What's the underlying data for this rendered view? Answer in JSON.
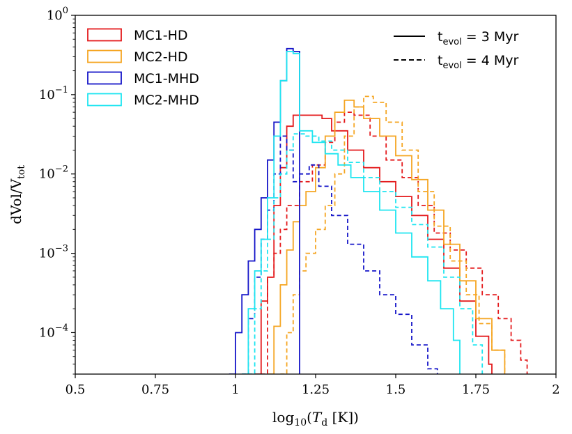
{
  "chart_data": {
    "type": "line",
    "drawstyle": "steps",
    "xlabel": {
      "prefix": "log",
      "sub": "10",
      "open": "(",
      "var": "T",
      "var_sub": "d",
      "close": " [K])"
    },
    "ylabel": {
      "main": "dVol/V",
      "sub": "tot"
    },
    "xlim": [
      0.5,
      2.0
    ],
    "ylim": [
      3e-05,
      1.0
    ],
    "yscale": "log",
    "grid": false,
    "x_ticks": [
      {
        "value": 0.5,
        "label": "0.5"
      },
      {
        "value": 0.75,
        "label": "0.75"
      },
      {
        "value": 1.0,
        "label": "1"
      },
      {
        "value": 1.25,
        "label": "1.25"
      },
      {
        "value": 1.5,
        "label": "1.5"
      },
      {
        "value": 1.75,
        "label": "1.75"
      },
      {
        "value": 2.0,
        "label": "2"
      }
    ],
    "y_ticks": [
      {
        "value": 0.0001,
        "base": "10",
        "exp": "−4"
      },
      {
        "value": 0.001,
        "base": "10",
        "exp": "−3"
      },
      {
        "value": 0.01,
        "base": "10",
        "exp": "−2"
      },
      {
        "value": 0.1,
        "base": "10",
        "exp": "−1"
      },
      {
        "value": 1.0,
        "base": "10",
        "exp": "0"
      }
    ],
    "legend_series": {
      "placement": "upper-left",
      "entries": [
        {
          "label": "MC1-HD",
          "color": "#e41a1c"
        },
        {
          "label": "MC2-HD",
          "color": "#f5a623"
        },
        {
          "label": "MC1-MHD",
          "color": "#1414c8"
        },
        {
          "label": "MC2-MHD",
          "color": "#1ee5f0"
        }
      ]
    },
    "legend_time": {
      "placement": "upper-right",
      "entries": [
        {
          "label_main": "t",
          "label_sub": "evol",
          "label_rest": " = 3 Myr",
          "linestyle": "solid"
        },
        {
          "label_main": "t",
          "label_sub": "evol",
          "label_rest": " = 4 Myr",
          "linestyle": "dashed"
        }
      ]
    },
    "series": [
      {
        "name": "MC1-HD",
        "t": "3 Myr",
        "color": "#e41a1c",
        "dash": false,
        "points": [
          [
            1.06,
            3e-05
          ],
          [
            1.08,
            0.00025
          ],
          [
            1.1,
            0.0005
          ],
          [
            1.12,
            0.004
          ],
          [
            1.14,
            0.012
          ],
          [
            1.16,
            0.04
          ],
          [
            1.18,
            0.055
          ],
          [
            1.2,
            0.055
          ],
          [
            1.24,
            0.055
          ],
          [
            1.27,
            0.05
          ],
          [
            1.3,
            0.035
          ],
          [
            1.35,
            0.02
          ],
          [
            1.4,
            0.012
          ],
          [
            1.45,
            0.008
          ],
          [
            1.5,
            0.0052
          ],
          [
            1.55,
            0.003
          ],
          [
            1.6,
            0.0015
          ],
          [
            1.65,
            0.00065
          ],
          [
            1.7,
            0.00025
          ],
          [
            1.75,
            9e-05
          ],
          [
            1.79,
            4e-05
          ],
          [
            1.8,
            3e-05
          ]
        ]
      },
      {
        "name": "MC1-HD",
        "t": "4 Myr",
        "color": "#e41a1c",
        "dash": true,
        "points": [
          [
            1.08,
            3e-05
          ],
          [
            1.1,
            0.0005
          ],
          [
            1.12,
            0.001
          ],
          [
            1.14,
            0.002
          ],
          [
            1.16,
            0.004
          ],
          [
            1.2,
            0.008
          ],
          [
            1.24,
            0.013
          ],
          [
            1.28,
            0.025
          ],
          [
            1.31,
            0.045
          ],
          [
            1.34,
            0.06
          ],
          [
            1.37,
            0.055
          ],
          [
            1.42,
            0.03
          ],
          [
            1.47,
            0.015
          ],
          [
            1.52,
            0.009
          ],
          [
            1.57,
            0.004
          ],
          [
            1.62,
            0.0018
          ],
          [
            1.67,
            0.0011
          ],
          [
            1.72,
            0.00065
          ],
          [
            1.77,
            0.0003
          ],
          [
            1.82,
            0.00015
          ],
          [
            1.86,
            8e-05
          ],
          [
            1.89,
            4.5e-05
          ],
          [
            1.91,
            3e-05
          ]
        ]
      },
      {
        "name": "MC2-HD",
        "t": "3 Myr",
        "color": "#f5a623",
        "dash": false,
        "points": [
          [
            1.1,
            3e-05
          ],
          [
            1.12,
            0.00012
          ],
          [
            1.14,
            0.0004
          ],
          [
            1.16,
            0.0011
          ],
          [
            1.18,
            0.0025
          ],
          [
            1.2,
            0.004
          ],
          [
            1.22,
            0.006
          ],
          [
            1.25,
            0.012
          ],
          [
            1.28,
            0.03
          ],
          [
            1.31,
            0.06
          ],
          [
            1.34,
            0.085
          ],
          [
            1.37,
            0.07
          ],
          [
            1.4,
            0.05
          ],
          [
            1.45,
            0.03
          ],
          [
            1.5,
            0.017
          ],
          [
            1.55,
            0.0085
          ],
          [
            1.6,
            0.0035
          ],
          [
            1.65,
            0.0013
          ],
          [
            1.7,
            0.00045
          ],
          [
            1.75,
            0.00015
          ],
          [
            1.8,
            6e-05
          ],
          [
            1.84,
            3e-05
          ]
        ]
      },
      {
        "name": "MC2-HD",
        "t": "4 Myr",
        "color": "#f5a623",
        "dash": true,
        "points": [
          [
            1.14,
            3e-05
          ],
          [
            1.16,
            0.0001
          ],
          [
            1.18,
            0.0003
          ],
          [
            1.2,
            0.0006
          ],
          [
            1.22,
            0.001
          ],
          [
            1.25,
            0.002
          ],
          [
            1.28,
            0.004
          ],
          [
            1.31,
            0.01
          ],
          [
            1.34,
            0.03
          ],
          [
            1.37,
            0.07
          ],
          [
            1.4,
            0.095
          ],
          [
            1.43,
            0.08
          ],
          [
            1.47,
            0.045
          ],
          [
            1.52,
            0.02
          ],
          [
            1.57,
            0.006
          ],
          [
            1.62,
            0.0022
          ],
          [
            1.67,
            0.0008
          ],
          [
            1.72,
            0.0003
          ],
          [
            1.76,
            0.00013
          ],
          [
            1.8,
            6e-05
          ],
          [
            1.84,
            3e-05
          ]
        ]
      },
      {
        "name": "MC1-MHD",
        "t": "3 Myr",
        "color": "#1414c8",
        "dash": false,
        "points": [
          [
            0.98,
            3e-05
          ],
          [
            1.0,
            0.0001
          ],
          [
            1.02,
            0.0003
          ],
          [
            1.04,
            0.0008
          ],
          [
            1.06,
            0.002
          ],
          [
            1.08,
            0.005
          ],
          [
            1.1,
            0.015
          ],
          [
            1.12,
            0.045
          ],
          [
            1.14,
            0.15
          ],
          [
            1.16,
            0.38
          ],
          [
            1.18,
            0.35
          ],
          [
            1.2,
            3e-05
          ]
        ]
      },
      {
        "name": "MC1-MHD",
        "t": "4 Myr",
        "color": "#1414c8",
        "dash": true,
        "points": [
          [
            1.02,
            3e-05
          ],
          [
            1.04,
            0.00015
          ],
          [
            1.06,
            0.0005
          ],
          [
            1.08,
            0.0015
          ],
          [
            1.1,
            0.0035
          ],
          [
            1.12,
            0.01
          ],
          [
            1.14,
            0.03
          ],
          [
            1.16,
            0.02
          ],
          [
            1.18,
            0.008
          ],
          [
            1.2,
            0.01
          ],
          [
            1.23,
            0.013
          ],
          [
            1.26,
            0.007
          ],
          [
            1.3,
            0.003
          ],
          [
            1.35,
            0.0013
          ],
          [
            1.4,
            0.0006
          ],
          [
            1.45,
            0.0003
          ],
          [
            1.5,
            0.00017
          ],
          [
            1.55,
            7e-05
          ],
          [
            1.6,
            3.5e-05
          ],
          [
            1.63,
            3e-05
          ]
        ]
      },
      {
        "name": "MC2-MHD",
        "t": "3 Myr",
        "color": "#1ee5f0",
        "dash": false,
        "points": [
          [
            1.02,
            3e-05
          ],
          [
            1.04,
            0.0002
          ],
          [
            1.06,
            0.0006
          ],
          [
            1.08,
            0.0015
          ],
          [
            1.1,
            0.005
          ],
          [
            1.12,
            0.03
          ],
          [
            1.14,
            0.15
          ],
          [
            1.16,
            0.35
          ],
          [
            1.18,
            0.33
          ],
          [
            1.2,
            0.035
          ],
          [
            1.24,
            0.025
          ],
          [
            1.28,
            0.018
          ],
          [
            1.32,
            0.013
          ],
          [
            1.36,
            0.009
          ],
          [
            1.4,
            0.006
          ],
          [
            1.45,
            0.0035
          ],
          [
            1.5,
            0.0018
          ],
          [
            1.55,
            0.0009
          ],
          [
            1.6,
            0.00045
          ],
          [
            1.64,
            0.0002
          ],
          [
            1.68,
            8e-05
          ],
          [
            1.7,
            3e-05
          ]
        ]
      },
      {
        "name": "MC2-MHD",
        "t": "4 Myr",
        "color": "#1ee5f0",
        "dash": true,
        "points": [
          [
            1.04,
            3e-05
          ],
          [
            1.06,
            0.0002
          ],
          [
            1.08,
            0.0006
          ],
          [
            1.1,
            0.0015
          ],
          [
            1.12,
            0.005
          ],
          [
            1.14,
            0.01
          ],
          [
            1.16,
            0.02
          ],
          [
            1.18,
            0.032
          ],
          [
            1.22,
            0.03
          ],
          [
            1.26,
            0.026
          ],
          [
            1.3,
            0.02
          ],
          [
            1.35,
            0.014
          ],
          [
            1.4,
            0.009
          ],
          [
            1.45,
            0.006
          ],
          [
            1.5,
            0.0038
          ],
          [
            1.55,
            0.0023
          ],
          [
            1.6,
            0.0012
          ],
          [
            1.65,
            0.0005
          ],
          [
            1.7,
            0.0002
          ],
          [
            1.74,
            7e-05
          ],
          [
            1.77,
            3e-05
          ]
        ]
      }
    ]
  }
}
